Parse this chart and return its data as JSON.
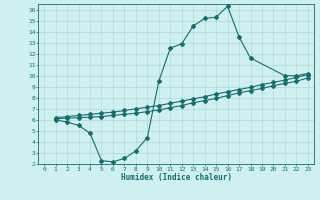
{
  "xlabel": "Humidex (Indice chaleur)",
  "xlim": [
    -0.5,
    23.5
  ],
  "ylim": [
    2,
    16.5
  ],
  "xticks": [
    0,
    1,
    2,
    3,
    4,
    5,
    6,
    7,
    8,
    9,
    10,
    11,
    12,
    13,
    14,
    15,
    16,
    17,
    18,
    19,
    20,
    21,
    22,
    23
  ],
  "yticks": [
    2,
    3,
    4,
    5,
    6,
    7,
    8,
    9,
    10,
    11,
    12,
    13,
    14,
    15,
    16
  ],
  "bg_color": "#cff0f0",
  "line_color": "#1a6b6b",
  "curve1_x": [
    1,
    2,
    3,
    4,
    5,
    6,
    7,
    8,
    9,
    10,
    11,
    12,
    13,
    14,
    15,
    16,
    17,
    18,
    21,
    22,
    23
  ],
  "curve1_y": [
    6.0,
    5.8,
    5.5,
    4.8,
    2.3,
    2.2,
    2.5,
    3.2,
    4.4,
    9.5,
    12.5,
    12.9,
    14.5,
    15.2,
    15.3,
    16.3,
    13.5,
    11.6,
    10.0,
    10.0,
    10.2
  ],
  "curve2_x": [
    1,
    2,
    3,
    4,
    5,
    6,
    7,
    8,
    9,
    10,
    11,
    12,
    13,
    14,
    15,
    16,
    17,
    18,
    19,
    20,
    21,
    22,
    23
  ],
  "curve2_y": [
    6.1,
    6.15,
    6.2,
    6.25,
    6.3,
    6.4,
    6.5,
    6.6,
    6.75,
    6.9,
    7.1,
    7.3,
    7.55,
    7.75,
    7.95,
    8.2,
    8.45,
    8.65,
    8.85,
    9.1,
    9.3,
    9.5,
    9.8
  ],
  "curve3_x": [
    1,
    2,
    3,
    4,
    5,
    6,
    7,
    8,
    9,
    10,
    11,
    12,
    13,
    14,
    15,
    16,
    17,
    18,
    19,
    20,
    21,
    22,
    23
  ],
  "curve3_y": [
    6.2,
    6.3,
    6.4,
    6.5,
    6.6,
    6.7,
    6.85,
    7.0,
    7.15,
    7.3,
    7.5,
    7.7,
    7.9,
    8.1,
    8.35,
    8.55,
    8.75,
    8.95,
    9.2,
    9.4,
    9.6,
    9.85,
    10.1
  ],
  "marker": "D",
  "markersize": 2.0,
  "linewidth": 0.8
}
